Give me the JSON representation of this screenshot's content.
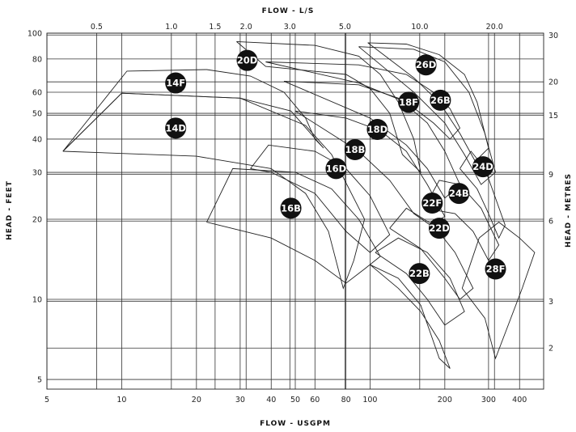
{
  "chart_data": {
    "type": "line",
    "title": "",
    "top_axis_title": "FLOW - L/S",
    "xlabel": "FLOW - USGPM",
    "ylabel_left": "HEAD - FEET",
    "ylabel_right": "HEAD - METRES",
    "xscale": "log",
    "yscale": "log",
    "xlim": [
      5,
      500
    ],
    "ylim": [
      4.6,
      100
    ],
    "grid": true,
    "bottom_ticks": [
      {
        "value": 5,
        "label": "5"
      },
      {
        "value": 10,
        "label": "10"
      },
      {
        "value": 20,
        "label": "20"
      },
      {
        "value": 30,
        "label": "30"
      },
      {
        "value": 40,
        "label": "40"
      },
      {
        "value": 50,
        "label": "50"
      },
      {
        "value": 60,
        "label": "60"
      },
      {
        "value": 80,
        "label": "80"
      },
      {
        "value": 100,
        "label": "100"
      },
      {
        "value": 200,
        "label": "200"
      },
      {
        "value": 300,
        "label": "300"
      },
      {
        "value": 400,
        "label": "400"
      }
    ],
    "top_ticks": [
      {
        "value": 0.5,
        "label": "0.5"
      },
      {
        "value": 1.0,
        "label": "1.0"
      },
      {
        "value": 1.5,
        "label": "1.5"
      },
      {
        "value": 2.0,
        "label": "2.0"
      },
      {
        "value": 3.0,
        "label": "3.0"
      },
      {
        "value": 5.0,
        "label": "5.0"
      },
      {
        "value": 10.0,
        "label": "10.0"
      },
      {
        "value": 20.0,
        "label": "20.0"
      }
    ],
    "left_ticks": [
      {
        "value": 100,
        "label": "100"
      },
      {
        "value": 80,
        "label": "80"
      },
      {
        "value": 60,
        "label": "60"
      },
      {
        "value": 50,
        "label": "50"
      },
      {
        "value": 40,
        "label": "40"
      },
      {
        "value": 30,
        "label": "30"
      },
      {
        "value": 20,
        "label": "20"
      },
      {
        "value": 10,
        "label": "10"
      },
      {
        "value": 5,
        "label": "5"
      }
    ],
    "right_ticks": [
      {
        "value": 30,
        "label": "30"
      },
      {
        "value": 20,
        "label": "20"
      },
      {
        "value": 15,
        "label": "15"
      },
      {
        "value": 9,
        "label": "9"
      },
      {
        "value": 6,
        "label": "6"
      },
      {
        "value": 3,
        "label": "3"
      },
      {
        "value": 2,
        "label": "2"
      }
    ],
    "series": [
      {
        "name": "14F",
        "label_pos": [
          16.5,
          65
        ],
        "points": [
          [
            5.8,
            36
          ],
          [
            10.5,
            72
          ],
          [
            22,
            73
          ],
          [
            33,
            69
          ],
          [
            45,
            60
          ],
          [
            55,
            48
          ],
          [
            60,
            40
          ],
          [
            65,
            37
          ],
          [
            48,
            51
          ],
          [
            30,
            57
          ],
          [
            10,
            59.5
          ],
          [
            5.8,
            36
          ]
        ]
      },
      {
        "name": "14D",
        "label_pos": [
          16.5,
          44
        ],
        "points": [
          [
            5.8,
            36
          ],
          [
            20,
            34.5
          ],
          [
            40,
            31
          ],
          [
            55,
            25
          ],
          [
            68,
            18
          ],
          [
            78,
            11
          ],
          [
            86,
            14
          ],
          [
            95,
            20
          ],
          [
            70,
            35
          ],
          [
            55,
            45
          ],
          [
            30,
            57
          ],
          [
            10,
            59.5
          ],
          [
            5.8,
            36
          ]
        ]
      },
      {
        "name": "20D",
        "label_pos": [
          32,
          79
        ],
        "points": [
          [
            29,
            93
          ],
          [
            60,
            90
          ],
          [
            90,
            82
          ],
          [
            110,
            70
          ],
          [
            130,
            55
          ],
          [
            150,
            40
          ],
          [
            160,
            30
          ],
          [
            135,
            35
          ],
          [
            120,
            50
          ],
          [
            100,
            62
          ],
          [
            80,
            70
          ],
          [
            38,
            75
          ],
          [
            29,
            93
          ]
        ]
      },
      {
        "name": "16B",
        "label_pos": [
          48,
          22
        ],
        "points": [
          [
            22,
            19.5
          ],
          [
            28,
            31
          ],
          [
            50,
            30
          ],
          [
            70,
            26
          ],
          [
            90,
            20
          ],
          [
            110,
            14.5
          ],
          [
            95,
            13
          ],
          [
            80,
            11.5
          ],
          [
            60,
            14
          ],
          [
            40,
            17
          ],
          [
            22,
            19.5
          ]
        ]
      },
      {
        "name": "16D",
        "label_pos": [
          73,
          31
        ],
        "points": [
          [
            33,
            31
          ],
          [
            39,
            38
          ],
          [
            60,
            36
          ],
          [
            80,
            31
          ],
          [
            100,
            24.5
          ],
          [
            120,
            17.5
          ],
          [
            100,
            15
          ],
          [
            80,
            18
          ],
          [
            60,
            25
          ],
          [
            40,
            30
          ],
          [
            33,
            31
          ]
        ]
      },
      {
        "name": "18B",
        "label_pos": [
          87,
          36.5
        ],
        "points": [
          [
            50,
            51
          ],
          [
            80,
            48
          ],
          [
            110,
            43
          ],
          [
            140,
            36
          ],
          [
            170,
            27
          ],
          [
            200,
            20.5
          ],
          [
            175,
            19
          ],
          [
            150,
            21
          ],
          [
            120,
            28
          ],
          [
            90,
            36
          ],
          [
            50,
            51
          ]
        ]
      },
      {
        "name": "18D",
        "label_pos": [
          107,
          43.5
        ],
        "points": [
          [
            45,
            66
          ],
          [
            90,
            64
          ],
          [
            130,
            57
          ],
          [
            170,
            46
          ],
          [
            200,
            36
          ],
          [
            230,
            27
          ],
          [
            200,
            24
          ],
          [
            170,
            31
          ],
          [
            140,
            38
          ],
          [
            100,
            48
          ],
          [
            45,
            66
          ]
        ]
      },
      {
        "name": "18F",
        "label_pos": [
          143,
          55
        ],
        "points": [
          [
            38,
            78
          ],
          [
            90,
            76
          ],
          [
            140,
            70
          ],
          [
            180,
            60
          ],
          [
            210,
            52
          ],
          [
            230,
            44
          ],
          [
            210,
            40
          ],
          [
            180,
            46
          ],
          [
            140,
            55
          ],
          [
            90,
            65
          ],
          [
            38,
            78
          ]
        ]
      },
      {
        "name": "26D",
        "label_pos": [
          168,
          76
        ],
        "points": [
          [
            98,
            92
          ],
          [
            140,
            91
          ],
          [
            190,
            83
          ],
          [
            240,
            70
          ],
          [
            270,
            55
          ],
          [
            300,
            37
          ],
          [
            265,
            33
          ],
          [
            230,
            42
          ],
          [
            190,
            55
          ],
          [
            150,
            68
          ],
          [
            98,
            92
          ]
        ]
      },
      {
        "name": "26B",
        "label_pos": [
          192,
          56
        ],
        "points": [
          [
            90,
            89
          ],
          [
            150,
            87
          ],
          [
            200,
            78
          ],
          [
            250,
            60
          ],
          [
            290,
            42
          ],
          [
            320,
            30
          ],
          [
            280,
            27
          ],
          [
            240,
            35
          ],
          [
            200,
            46
          ],
          [
            150,
            60
          ],
          [
            90,
            89
          ]
        ]
      },
      {
        "name": "24D",
        "label_pos": [
          285,
          31.5
        ],
        "points": [
          [
            230,
            31
          ],
          [
            255,
            36
          ],
          [
            290,
            31
          ],
          [
            320,
            24
          ],
          [
            350,
            19
          ],
          [
            330,
            17
          ],
          [
            300,
            21
          ],
          [
            270,
            26
          ],
          [
            230,
            31
          ]
        ]
      },
      {
        "name": "24B",
        "label_pos": [
          228,
          25
        ],
        "points": [
          [
            165,
            22
          ],
          [
            190,
            28
          ],
          [
            230,
            27
          ],
          [
            280,
            22
          ],
          [
            330,
            16
          ],
          [
            300,
            14
          ],
          [
            260,
            18
          ],
          [
            220,
            21
          ],
          [
            165,
            22
          ]
        ]
      },
      {
        "name": "22F",
        "label_pos": [
          178,
          23
        ],
        "points": [
          [
            120,
            18.5
          ],
          [
            140,
            22
          ],
          [
            180,
            19
          ],
          [
            220,
            15
          ],
          [
            260,
            11
          ],
          [
            230,
            10
          ],
          [
            200,
            12
          ],
          [
            160,
            15.5
          ],
          [
            120,
            18.5
          ]
        ]
      },
      {
        "name": "22D",
        "label_pos": [
          190,
          18.5
        ],
        "points": [
          [
            105,
            15
          ],
          [
            130,
            17
          ],
          [
            170,
            15
          ],
          [
            210,
            12
          ],
          [
            240,
            9
          ],
          [
            200,
            8
          ],
          [
            170,
            10
          ],
          [
            140,
            12.5
          ],
          [
            105,
            15
          ]
        ]
      },
      {
        "name": "22B",
        "label_pos": [
          158,
          12.5
        ],
        "points": [
          [
            100,
            13.5
          ],
          [
            130,
            12
          ],
          [
            160,
            9.5
          ],
          [
            190,
            6
          ],
          [
            210,
            5.5
          ],
          [
            190,
            7
          ],
          [
            160,
            9
          ],
          [
            130,
            11
          ],
          [
            100,
            13.5
          ]
        ]
      },
      {
        "name": "28F",
        "label_pos": [
          320,
          13
        ],
        "points": [
          [
            235,
            11
          ],
          [
            275,
            17
          ],
          [
            330,
            19.5
          ],
          [
            400,
            17
          ],
          [
            460,
            15
          ],
          [
            410,
            11
          ],
          [
            360,
            8
          ],
          [
            320,
            6
          ],
          [
            290,
            8.5
          ],
          [
            235,
            11
          ]
        ]
      }
    ]
  }
}
